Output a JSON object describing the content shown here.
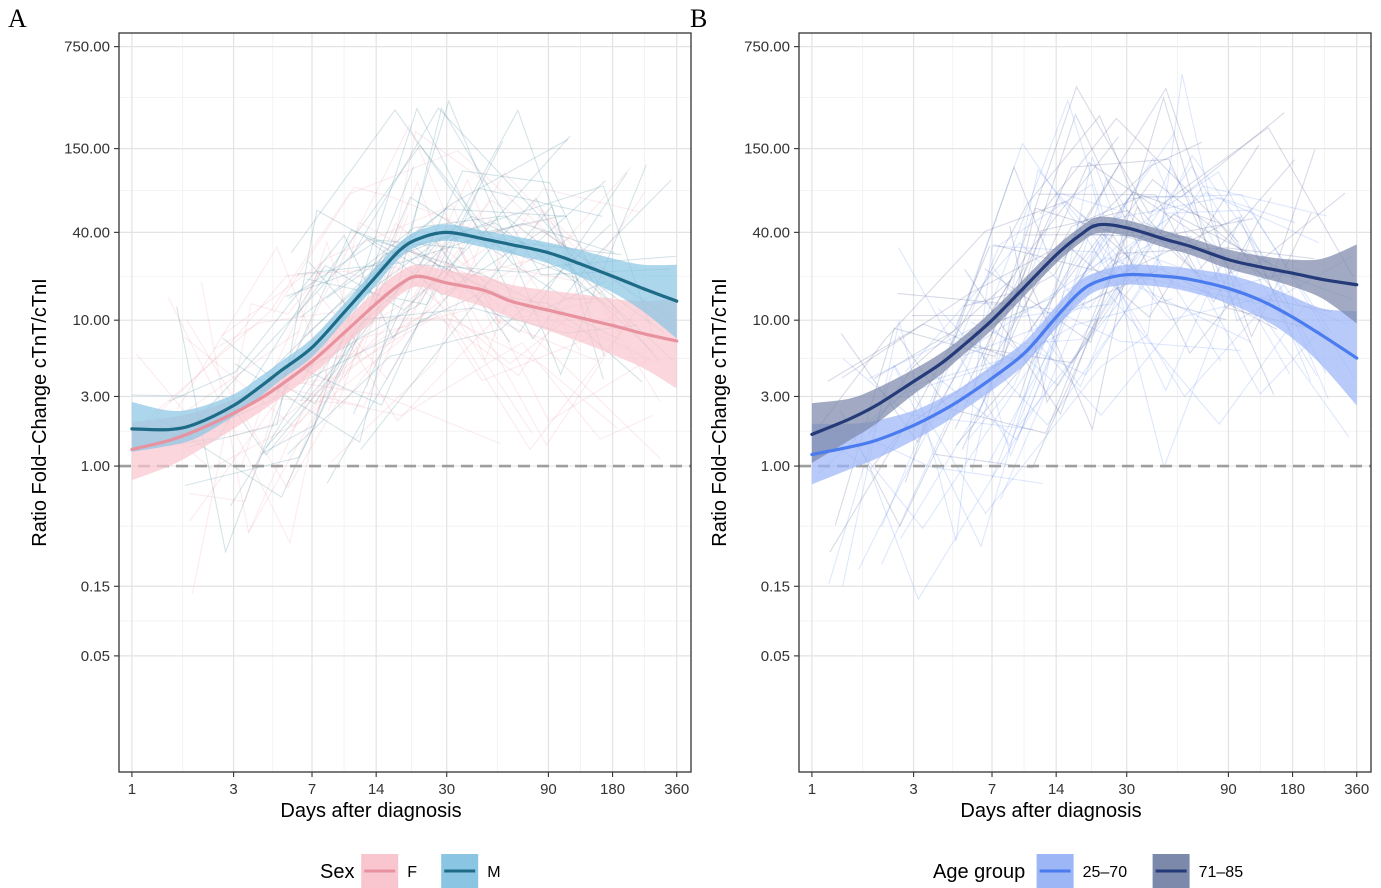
{
  "chart_data": [
    {
      "panel": "A",
      "type": "line",
      "xlabel": "Days after diagnosis",
      "ylabel": "Ratio Fold−Change cTnT/cTnI",
      "x_scale": "log",
      "y_scale": "log",
      "x_ticks": [
        1,
        3,
        7,
        14,
        30,
        90,
        180,
        360
      ],
      "x_tick_labels": [
        "1",
        "3",
        "7",
        "14",
        "30",
        "90",
        "180",
        "360"
      ],
      "y_ticks": [
        0.05,
        0.15,
        1,
        3,
        10,
        40,
        150,
        750
      ],
      "y_tick_labels": [
        "0.05",
        "0.15",
        "1.00",
        "3.00",
        "10.00",
        "40.00",
        "150.00",
        "750.00"
      ],
      "xlim": [
        0.87,
        420
      ],
      "ylim": [
        0.008,
        930
      ],
      "grid": true,
      "reference_line": 1,
      "legend": {
        "title": "Sex",
        "position": "bottom"
      },
      "series": [
        {
          "name": "F",
          "color": "#e8929f",
          "band_color": "#f9c6cf",
          "x": [
            1,
            1.5,
            2,
            3,
            4,
            5,
            7,
            10,
            14,
            18,
            22,
            30,
            45,
            60,
            90,
            130,
            180,
            250,
            360
          ],
          "y": [
            1.3,
            1.5,
            1.75,
            2.3,
            2.9,
            3.6,
            5.2,
            8.3,
            13,
            17.5,
            20,
            18,
            16,
            13.5,
            11.7,
            10.3,
            9.2,
            8.1,
            7.2
          ],
          "lower": [
            0.8,
            1.0,
            1.25,
            1.8,
            2.35,
            2.95,
            4.2,
            6.7,
            10.5,
            14.8,
            17,
            14.8,
            12.3,
            10.4,
            8.5,
            7.0,
            5.8,
            4.7,
            3.4
          ],
          "upper": [
            2.0,
            2.15,
            2.35,
            2.85,
            3.5,
            4.3,
            6.2,
            10.1,
            16,
            21.5,
            24,
            22,
            20,
            17.5,
            16,
            15,
            14,
            13.5,
            14
          ]
        },
        {
          "name": "M",
          "color": "#1d6b87",
          "band_color": "#8ac6e3",
          "x": [
            1,
            1.5,
            2,
            3,
            4,
            5,
            7,
            10,
            14,
            18,
            22,
            30,
            45,
            60,
            90,
            130,
            180,
            250,
            360
          ],
          "y": [
            1.8,
            1.78,
            1.95,
            2.6,
            3.5,
            4.5,
            6.5,
            11.5,
            20,
            30,
            36,
            40,
            36,
            33,
            29,
            24,
            20,
            16.5,
            13.5
          ],
          "lower": [
            1.25,
            1.38,
            1.55,
            2.2,
            3.0,
            3.9,
            5.6,
            10,
            17.5,
            26.5,
            32,
            35,
            31.5,
            28.5,
            24.5,
            19.5,
            15.5,
            11.5,
            7.5
          ],
          "upper": [
            2.75,
            2.4,
            2.5,
            3.1,
            4.1,
            5.2,
            7.5,
            13.2,
            23,
            34,
            41,
            45.5,
            41,
            38,
            34,
            30,
            26.5,
            24,
            24
          ]
        }
      ]
    },
    {
      "panel": "B",
      "type": "line",
      "xlabel": "Days after diagnosis",
      "ylabel": "Ratio Fold−Change cTnT/cTnI",
      "x_scale": "log",
      "y_scale": "log",
      "x_ticks": [
        1,
        3,
        7,
        14,
        30,
        90,
        180,
        360
      ],
      "x_tick_labels": [
        "1",
        "3",
        "7",
        "14",
        "30",
        "90",
        "180",
        "360"
      ],
      "y_ticks": [
        0.05,
        0.15,
        1,
        3,
        10,
        40,
        150,
        750
      ],
      "y_tick_labels": [
        "0.05",
        "0.15",
        "1.00",
        "3.00",
        "10.00",
        "40.00",
        "150.00",
        "750.00"
      ],
      "xlim": [
        0.87,
        420
      ],
      "ylim": [
        0.008,
        930
      ],
      "grid": true,
      "reference_line": 1,
      "legend": {
        "title": "Age group",
        "position": "bottom"
      },
      "series": [
        {
          "name": "25–70",
          "color": "#4a7bef",
          "band_color": "#9cb6f6",
          "x": [
            1,
            1.5,
            2,
            3,
            4,
            5,
            7,
            10,
            14,
            18,
            22,
            30,
            45,
            60,
            90,
            130,
            180,
            250,
            360
          ],
          "y": [
            1.2,
            1.35,
            1.5,
            1.9,
            2.35,
            2.85,
            4.0,
            6.0,
            10.5,
            15.5,
            18.5,
            20.5,
            20,
            19,
            16.5,
            13.5,
            10.5,
            7.8,
            5.5
          ],
          "lower": [
            0.75,
            0.95,
            1.12,
            1.5,
            1.9,
            2.35,
            3.3,
            5.0,
            8.8,
            13,
            16,
            17.5,
            16.8,
            15.5,
            13,
            10.2,
            7.5,
            4.8,
            2.6
          ],
          "upper": [
            1.95,
            1.95,
            2.05,
            2.4,
            2.9,
            3.45,
            4.9,
            7.2,
            12.5,
            18.5,
            21.5,
            24,
            23.5,
            22.5,
            20.5,
            17.5,
            14.5,
            12,
            11.5
          ]
        },
        {
          "name": "71–85",
          "color": "#253a78",
          "band_color": "#7d89aa",
          "x": [
            1,
            1.5,
            2,
            3,
            4,
            5,
            7,
            10,
            14,
            18,
            22,
            30,
            45,
            60,
            90,
            130,
            180,
            250,
            360
          ],
          "y": [
            1.65,
            2.1,
            2.6,
            3.8,
            5.0,
            6.5,
            10,
            17,
            28,
            38,
            45,
            43,
            36,
            32,
            26,
            23,
            21,
            19,
            17.5
          ],
          "lower": [
            1.05,
            1.5,
            1.95,
            3.1,
            4.2,
            5.6,
            8.6,
            14.8,
            24.5,
            33.5,
            39.5,
            38,
            31.5,
            28,
            22.5,
            19.5,
            17,
            14,
            9.5
          ],
          "upper": [
            2.7,
            2.9,
            3.4,
            4.6,
            5.9,
            7.5,
            11.6,
            19.5,
            32,
            43,
            51,
            48.5,
            41,
            36.5,
            30.5,
            27.5,
            26,
            26.5,
            33
          ]
        }
      ]
    }
  ]
}
